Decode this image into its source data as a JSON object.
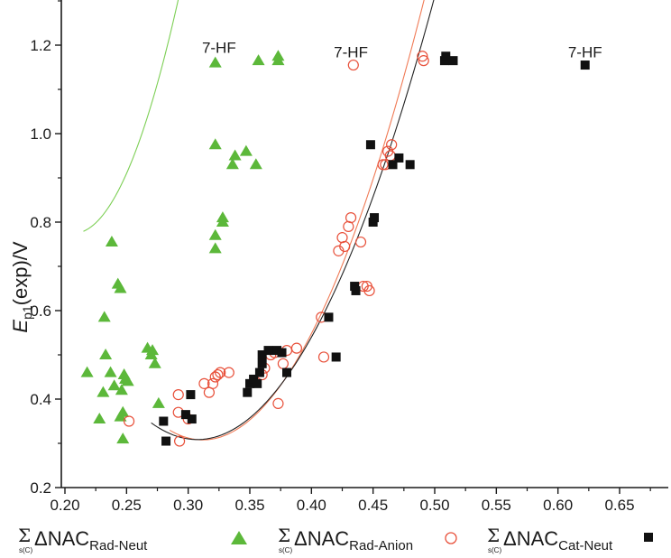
{
  "chart_data": {
    "type": "scatter",
    "title": "",
    "xlabel": "",
    "ylabel_main": "E",
    "ylabel_sub": "p1",
    "ylabel_rest": "(exp)/V",
    "xlim": [
      0.2,
      0.67
    ],
    "ylim": [
      0.2,
      1.3
    ],
    "xticks": [
      0.2,
      0.25,
      0.3,
      0.35,
      0.4,
      0.45,
      0.5,
      0.55,
      0.6,
      0.65
    ],
    "yticks": [
      0.2,
      0.4,
      0.6,
      0.8,
      1.0,
      1.2
    ],
    "xtick_labels": [
      "0.20",
      "0.25",
      "0.30",
      "0.35",
      "0.40",
      "0.45",
      "0.50",
      "0.55",
      "0.60",
      "0.65"
    ],
    "ytick_labels": [
      "0.2",
      "0.4",
      "0.6",
      "0.8",
      "1.0",
      "1.2"
    ],
    "annotations": [
      {
        "text": "7-HF",
        "x": 0.325,
        "y": 1.195
      },
      {
        "text": "7-HF",
        "x": 0.432,
        "y": 1.185
      },
      {
        "text": "7-HF",
        "x": 0.622,
        "y": 1.185
      }
    ],
    "series": [
      {
        "name": "Rad-Neut",
        "sigma": "Σ",
        "sigma_sub": "s(C)",
        "label_main": "ΔNAC",
        "label_sub": "Rad-Neut",
        "marker": "triangle",
        "color": "#5cb83a",
        "fit_color": "#7dcf55",
        "fit": [
          0.215,
          0.375
        ],
        "fit_coeffs": [
          3.91,
          -30.3,
          73.2
        ],
        "points": [
          [
            0.218,
            0.46
          ],
          [
            0.228,
            0.355
          ],
          [
            0.231,
            0.415
          ],
          [
            0.232,
            0.585
          ],
          [
            0.233,
            0.5
          ],
          [
            0.237,
            0.46
          ],
          [
            0.238,
            0.755
          ],
          [
            0.24,
            0.43
          ],
          [
            0.243,
            0.66
          ],
          [
            0.245,
            0.36
          ],
          [
            0.245,
            0.65
          ],
          [
            0.246,
            0.42
          ],
          [
            0.247,
            0.37
          ],
          [
            0.247,
            0.31
          ],
          [
            0.248,
            0.455
          ],
          [
            0.249,
            0.445
          ],
          [
            0.251,
            0.44
          ],
          [
            0.267,
            0.515
          ],
          [
            0.27,
            0.5
          ],
          [
            0.271,
            0.51
          ],
          [
            0.273,
            0.48
          ],
          [
            0.276,
            0.39
          ],
          [
            0.322,
            0.74
          ],
          [
            0.322,
            0.77
          ],
          [
            0.322,
            0.975
          ],
          [
            0.322,
            1.16
          ],
          [
            0.328,
            0.8
          ],
          [
            0.328,
            0.81
          ],
          [
            0.336,
            0.93
          ],
          [
            0.338,
            0.95
          ],
          [
            0.347,
            0.96
          ],
          [
            0.355,
            0.93
          ],
          [
            0.357,
            1.165
          ],
          [
            0.373,
            1.165
          ],
          [
            0.373,
            1.175
          ]
        ]
      },
      {
        "name": "Rad-Anion",
        "sigma": "Σ",
        "sigma_sub": "s(C)",
        "label_main": "ΔNAC",
        "label_sub": "Rad-Anion",
        "marker": "circle-open",
        "color": "#e8503a",
        "fit_color": "#f07a55",
        "fit": [
          0.285,
          0.492
        ],
        "fit_coeffs": [
          3.3,
          -19.2,
          30.8
        ],
        "points": [
          [
            0.252,
            0.35
          ],
          [
            0.292,
            0.41
          ],
          [
            0.292,
            0.37
          ],
          [
            0.293,
            0.305
          ],
          [
            0.3,
            0.355
          ],
          [
            0.313,
            0.435
          ],
          [
            0.317,
            0.415
          ],
          [
            0.32,
            0.435
          ],
          [
            0.322,
            0.45
          ],
          [
            0.324,
            0.455
          ],
          [
            0.326,
            0.46
          ],
          [
            0.333,
            0.46
          ],
          [
            0.36,
            0.455
          ],
          [
            0.362,
            0.47
          ],
          [
            0.367,
            0.5
          ],
          [
            0.37,
            0.505
          ],
          [
            0.373,
            0.39
          ],
          [
            0.377,
            0.48
          ],
          [
            0.38,
            0.51
          ],
          [
            0.388,
            0.515
          ],
          [
            0.408,
            0.585
          ],
          [
            0.41,
            0.495
          ],
          [
            0.422,
            0.735
          ],
          [
            0.425,
            0.765
          ],
          [
            0.427,
            0.745
          ],
          [
            0.43,
            0.79
          ],
          [
            0.432,
            0.81
          ],
          [
            0.434,
            1.155
          ],
          [
            0.44,
            0.755
          ],
          [
            0.442,
            0.655
          ],
          [
            0.445,
            0.655
          ],
          [
            0.447,
            0.645
          ],
          [
            0.458,
            0.93
          ],
          [
            0.46,
            0.93
          ],
          [
            0.462,
            0.96
          ],
          [
            0.464,
            0.95
          ],
          [
            0.465,
            0.975
          ],
          [
            0.49,
            1.175
          ],
          [
            0.491,
            1.165
          ]
        ]
      },
      {
        "name": "Cat-Neut",
        "sigma": "Σ",
        "sigma_sub": "s(C)",
        "label_main": "ΔNAC",
        "label_sub": "Cat-Neut",
        "marker": "square",
        "color": "#111111",
        "fit_color": "#222222",
        "fit": [
          0.27,
          0.51
        ],
        "fit_coeffs": [
          2.86,
          -16.6,
          27.0
        ],
        "points": [
          [
            0.28,
            0.35
          ],
          [
            0.282,
            0.305
          ],
          [
            0.298,
            0.365
          ],
          [
            0.302,
            0.41
          ],
          [
            0.303,
            0.355
          ],
          [
            0.348,
            0.415
          ],
          [
            0.35,
            0.435
          ],
          [
            0.353,
            0.445
          ],
          [
            0.356,
            0.435
          ],
          [
            0.358,
            0.46
          ],
          [
            0.36,
            0.48
          ],
          [
            0.36,
            0.5
          ],
          [
            0.365,
            0.51
          ],
          [
            0.372,
            0.51
          ],
          [
            0.376,
            0.505
          ],
          [
            0.38,
            0.46
          ],
          [
            0.414,
            0.585
          ],
          [
            0.42,
            0.495
          ],
          [
            0.435,
            0.655
          ],
          [
            0.436,
            0.645
          ],
          [
            0.448,
            0.975
          ],
          [
            0.45,
            0.8
          ],
          [
            0.451,
            0.81
          ],
          [
            0.466,
            0.93
          ],
          [
            0.471,
            0.945
          ],
          [
            0.48,
            0.93
          ],
          [
            0.508,
            1.165
          ],
          [
            0.509,
            1.175
          ],
          [
            0.515,
            1.165
          ],
          [
            0.622,
            1.155
          ]
        ]
      }
    ]
  }
}
